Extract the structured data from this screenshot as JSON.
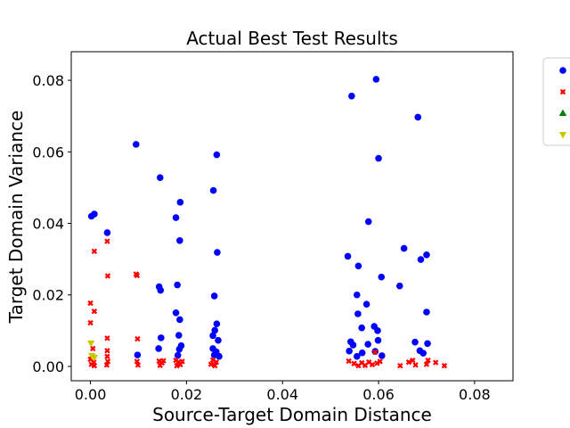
{
  "chart_data": {
    "type": "scatter",
    "title": "Actual Best Test Results",
    "xlabel": "Source-Target Domain Distance",
    "ylabel": "Target Domain Variance",
    "xlim": [
      -0.004,
      0.088
    ],
    "ylim": [
      -0.004,
      0.088
    ],
    "xticks": [
      0.0,
      0.02,
      0.04,
      0.06,
      0.08
    ],
    "xtick_labels": [
      "0.00",
      "0.02",
      "0.04",
      "0.06",
      "0.08"
    ],
    "yticks": [
      0.0,
      0.02,
      0.04,
      0.06,
      0.08
    ],
    "ytick_labels": [
      "0.00",
      "0.02",
      "0.04",
      "0.06",
      "0.08"
    ],
    "grid": false,
    "legend_placement": "outside-right",
    "series": [
      {
        "marker": "circle",
        "color": "#0000ff",
        "points": [
          [
            0.0002,
            0.042
          ],
          [
            0.0008,
            0.0426
          ],
          [
            0.0035,
            0.0374
          ],
          [
            0.0095,
            0.0621
          ],
          [
            0.0098,
            0.0032
          ],
          [
            0.0145,
            0.0528
          ],
          [
            0.0143,
            0.0223
          ],
          [
            0.0146,
            0.0213
          ],
          [
            0.0147,
            0.008
          ],
          [
            0.0142,
            0.005
          ],
          [
            0.0178,
            0.0416
          ],
          [
            0.0187,
            0.0459
          ],
          [
            0.0181,
            0.0228
          ],
          [
            0.0178,
            0.015
          ],
          [
            0.0186,
            0.0131
          ],
          [
            0.0184,
            0.0087
          ],
          [
            0.0189,
            0.0058
          ],
          [
            0.0185,
            0.0048
          ],
          [
            0.0182,
            0.0031
          ],
          [
            0.0186,
            0.0352
          ],
          [
            0.0256,
            0.0492
          ],
          [
            0.0263,
            0.0592
          ],
          [
            0.0264,
            0.0319
          ],
          [
            0.0258,
            0.0197
          ],
          [
            0.0263,
            0.0119
          ],
          [
            0.0259,
            0.0101
          ],
          [
            0.0255,
            0.0086
          ],
          [
            0.0266,
            0.0073
          ],
          [
            0.0255,
            0.005
          ],
          [
            0.0262,
            0.0041
          ],
          [
            0.0268,
            0.0028
          ],
          [
            0.0258,
            0.0032
          ],
          [
            0.0544,
            0.0756
          ],
          [
            0.0595,
            0.0803
          ],
          [
            0.0682,
            0.0697
          ],
          [
            0.06,
            0.0582
          ],
          [
            0.0579,
            0.0405
          ],
          [
            0.0653,
            0.033
          ],
          [
            0.0536,
            0.0308
          ],
          [
            0.07,
            0.0312
          ],
          [
            0.0688,
            0.0299
          ],
          [
            0.0558,
            0.0281
          ],
          [
            0.0606,
            0.025
          ],
          [
            0.0644,
            0.0225
          ],
          [
            0.0555,
            0.02
          ],
          [
            0.0575,
            0.0174
          ],
          [
            0.0557,
            0.0147
          ],
          [
            0.07,
            0.0152
          ],
          [
            0.0565,
            0.0108
          ],
          [
            0.0591,
            0.0112
          ],
          [
            0.0598,
            0.01
          ],
          [
            0.0542,
            0.0069
          ],
          [
            0.0547,
            0.006
          ],
          [
            0.0578,
            0.0062
          ],
          [
            0.0599,
            0.0073
          ],
          [
            0.0676,
            0.0068
          ],
          [
            0.0702,
            0.0064
          ],
          [
            0.0539,
            0.0043
          ],
          [
            0.0555,
            0.0028
          ],
          [
            0.0566,
            0.0038
          ],
          [
            0.0593,
            0.0042
          ],
          [
            0.0686,
            0.0044
          ],
          [
            0.0607,
            0.003
          ],
          [
            0.0693,
            0.0037
          ]
        ]
      },
      {
        "marker": "x",
        "color": "#ff0000",
        "points": [
          [
            0.0008,
            0.0322
          ],
          [
            0.0035,
            0.035
          ],
          [
            0.0036,
            0.0253
          ],
          [
            0.0,
            0.0177
          ],
          [
            0.0008,
            0.0154
          ],
          [
            0.0,
            0.0122
          ],
          [
            0.0095,
            0.0258
          ],
          [
            0.0097,
            0.0254
          ],
          [
            0.0098,
            0.0077
          ],
          [
            0.0035,
            0.0079
          ],
          [
            0.0005,
            0.005
          ],
          [
            0.0003,
            0.003
          ],
          [
            0.0,
            0.002
          ],
          [
            0.0007,
            0.0012
          ],
          [
            0.0002,
            0.0006
          ],
          [
            0.0008,
            0.0002
          ],
          [
            0.0035,
            0.0044
          ],
          [
            0.0035,
            0.0028
          ],
          [
            0.0036,
            0.0014
          ],
          [
            0.0034,
            0.0004
          ],
          [
            0.0097,
            0.0014
          ],
          [
            0.0099,
            0.0004
          ],
          [
            0.0143,
            0.0015
          ],
          [
            0.0149,
            0.001
          ],
          [
            0.0145,
            0.0003
          ],
          [
            0.0152,
            0.0016
          ],
          [
            0.0178,
            0.0017
          ],
          [
            0.0183,
            0.0012
          ],
          [
            0.0187,
            0.0005
          ],
          [
            0.0191,
            0.0014
          ],
          [
            0.018,
            0.0002
          ],
          [
            0.0251,
            0.0006
          ],
          [
            0.0255,
            0.0018
          ],
          [
            0.0259,
            0.0002
          ],
          [
            0.0262,
            0.0012
          ],
          [
            0.0538,
            0.0015
          ],
          [
            0.0549,
            0.0008
          ],
          [
            0.0558,
            0.0002
          ],
          [
            0.0565,
            0.001
          ],
          [
            0.0572,
            0.0003
          ],
          [
            0.058,
            0.0012
          ],
          [
            0.0587,
            0.0005
          ],
          [
            0.0593,
            0.004
          ],
          [
            0.0597,
            0.0009
          ],
          [
            0.0603,
            0.0014
          ],
          [
            0.0645,
            0.0002
          ],
          [
            0.0663,
            0.0012
          ],
          [
            0.0671,
            0.0017
          ],
          [
            0.0677,
            0.0004
          ],
          [
            0.07,
            0.0006
          ],
          [
            0.0703,
            0.0017
          ],
          [
            0.0719,
            0.0011
          ],
          [
            0.0737,
            0.0002
          ]
        ]
      },
      {
        "marker": "triangle-up",
        "color": "#008000",
        "points": []
      },
      {
        "marker": "triangle-down",
        "color": "#c8c800",
        "points": [
          [
            0.0001,
            0.0065
          ],
          [
            0.0003,
            0.003
          ],
          [
            0.0008,
            0.0025
          ]
        ]
      }
    ]
  }
}
